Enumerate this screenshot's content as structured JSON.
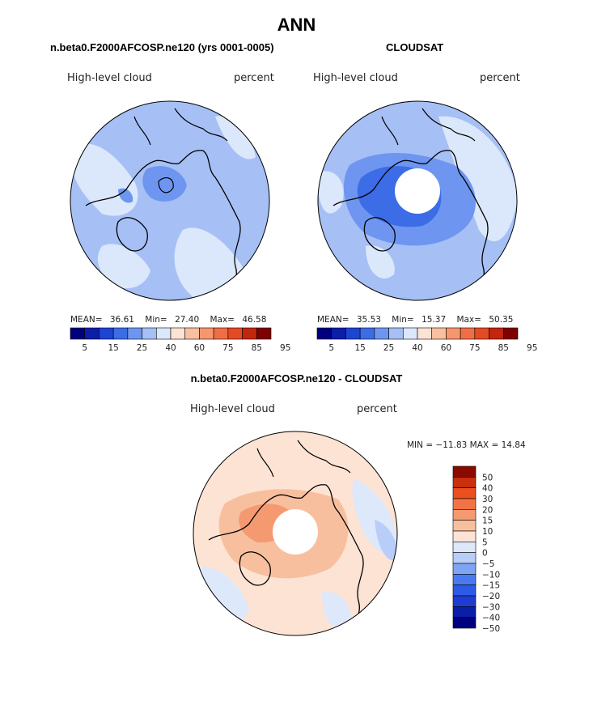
{
  "page": {
    "title": "ANN",
    "left_subtitle": "n.beta0.F2000AFCOSP.ne120 (yrs 0001-0005)",
    "right_subtitle": "CLOUDSAT",
    "diff_subtitle": "n.beta0.F2000AFCOSP.ne120 - CLOUDSAT"
  },
  "colors": {
    "abs_scale": [
      "#00007f",
      "#0a1ea8",
      "#1e44d2",
      "#3c6ce6",
      "#6e96f0",
      "#a6c0f5",
      "#dbe7fb",
      "#fde3d3",
      "#f8bfa0",
      "#f5966e",
      "#f06e46",
      "#e54a24",
      "#c2260d",
      "#7f0000"
    ],
    "diff_scale": [
      "#00007f",
      "#0a1ea8",
      "#1e3cd2",
      "#2e5ae8",
      "#4a7af0",
      "#7ea4f4",
      "#b8cdf8",
      "#dde8fb",
      "#fde3d3",
      "#f8bf9e",
      "#f59a70",
      "#f27446",
      "#ec4f1e",
      "#c8300e",
      "#8b0a00"
    ]
  },
  "chart_data": [
    {
      "type": "heatmap",
      "name": "model",
      "projection": "north-polar-stereographic",
      "title": "n.beta0.F2000AFCOSP.ne120 (yrs 0001-0005)",
      "left_label": "High-level cloud",
      "right_label": "percent",
      "stats": {
        "mean_label": "MEAN=",
        "mean": "36.61",
        "min_label": "Min=",
        "min": "27.40",
        "max_label": "Max=",
        "max": "46.58"
      },
      "colorbar": {
        "orientation": "horizontal",
        "levels": [
          5,
          10,
          15,
          20,
          25,
          30,
          40,
          50,
          60,
          70,
          75,
          80,
          85,
          90,
          95
        ],
        "tick_labels": [
          "5",
          "15",
          "25",
          "40",
          "60",
          "75",
          "85",
          "95"
        ]
      }
    },
    {
      "type": "heatmap",
      "name": "obs",
      "projection": "north-polar-stereographic",
      "title": "CLOUDSAT",
      "left_label": "High-level cloud",
      "right_label": "percent",
      "stats": {
        "mean_label": "MEAN=",
        "mean": "35.53",
        "min_label": "Min=",
        "min": "15.37",
        "max_label": "Max=",
        "max": "50.35"
      },
      "colorbar": {
        "orientation": "horizontal",
        "levels": [
          5,
          10,
          15,
          20,
          25,
          30,
          40,
          50,
          60,
          70,
          75,
          80,
          85,
          90,
          95
        ],
        "tick_labels": [
          "5",
          "15",
          "25",
          "40",
          "60",
          "75",
          "85",
          "95"
        ]
      }
    },
    {
      "type": "heatmap",
      "name": "difference",
      "projection": "north-polar-stereographic",
      "title": "n.beta0.F2000AFCOSP.ne120 - CLOUDSAT",
      "left_label": "High-level cloud",
      "right_label": "percent",
      "minmax_label": "MIN = −11.83 MAX =  14.84",
      "colorbar": {
        "orientation": "vertical",
        "levels": [
          -50,
          -40,
          -30,
          -20,
          -15,
          -10,
          -5,
          0,
          5,
          10,
          15,
          20,
          30,
          40,
          50
        ],
        "tick_labels": [
          "50",
          "40",
          "30",
          "20",
          "15",
          "10",
          "5",
          "0",
          "−5",
          "−10",
          "−15",
          "−20",
          "−30",
          "−40",
          "−50"
        ]
      }
    }
  ]
}
